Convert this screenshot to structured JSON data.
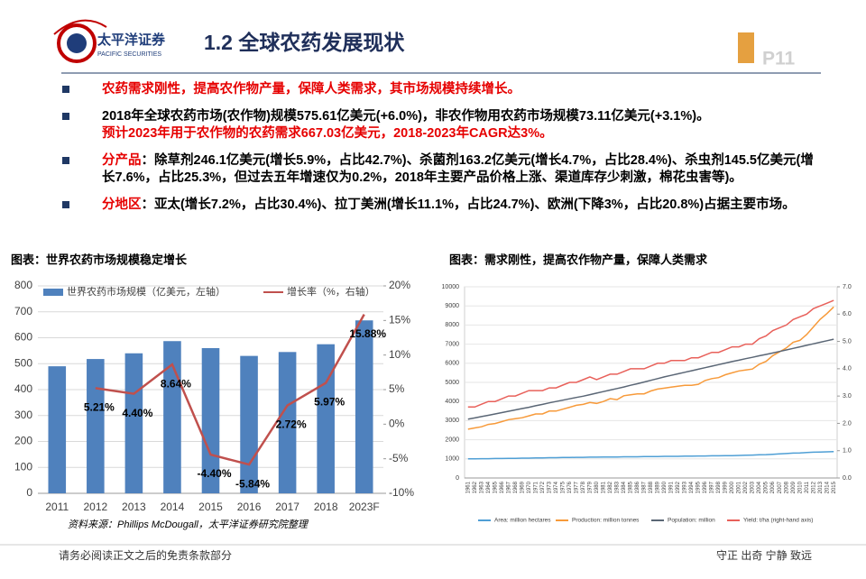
{
  "header": {
    "logo_cn": "太平洋证券",
    "logo_en": "PACIFIC SECURITIES",
    "title": "1.2 全球农药发展现状",
    "page": "P11"
  },
  "bullets": [
    [
      {
        "text": "农药需求刚性，提高农作物产量，保障人类需求，其市场规模持续增长。",
        "color": "#e60000"
      }
    ],
    [
      {
        "text": "2018年全球农药市场(农作物)规模575.61亿美元(+6.0%)，非农作物用农药市场规模73.11亿美元(+3.1%)。",
        "color": "#000000"
      },
      {
        "text": "预计2023年用于农作物的农药需求667.03亿美元，2018-2023年CAGR达3%。",
        "color": "#e60000"
      }
    ],
    [
      {
        "text": "分产品",
        "color": "#e60000"
      },
      {
        "text": "：除草剂246.1亿美元(增长5.9%，占比42.7%)、杀菌剂163.2亿美元(增长4.7%，占比28.4%)、杀虫剂145.5亿美元(增长7.6%，占比25.3%，但过去五年增速仅为0.2%，2018年主要产品价格上涨、渠道库存少刺激，棉花虫害等)。",
        "color": "#000000"
      }
    ],
    [
      {
        "text": "分地区",
        "color": "#e60000"
      },
      {
        "text": "：亚太(增长7.2%，占比30.4%)、拉丁美洲(增长11.1%，占比24.7%)、欧洲(下降3%，占比20.8%)占据主要市场。",
        "color": "#000000"
      }
    ]
  ],
  "chart_data": [
    {
      "type": "combo",
      "title": "图表：世界农药市场规模稳定增长",
      "categories": [
        "2011",
        "2012",
        "2013",
        "2014",
        "2015",
        "2016",
        "2017",
        "2018",
        "2023F"
      ],
      "series": [
        {
          "name": "世界农药市场规模（亿美元，左轴）",
          "type": "bar",
          "color": "#4f81bd",
          "values": [
            490,
            518,
            540,
            587,
            560,
            530,
            545,
            575,
            667
          ]
        },
        {
          "name": "增长率（%，右轴）",
          "type": "line",
          "axis": "y2",
          "color": "#c0504d",
          "values": [
            null,
            5.21,
            4.4,
            8.64,
            -4.4,
            -5.84,
            2.72,
            5.97,
            15.88
          ],
          "value_labels": [
            null,
            "5.21%",
            "4.40%",
            "8.64%",
            "-4.40%",
            "-5.84%",
            "2.72%",
            "5.97%",
            "15.88%"
          ]
        }
      ],
      "ylim": [
        0,
        800
      ],
      "yticks": [
        0,
        100,
        200,
        300,
        400,
        500,
        600,
        700,
        800
      ],
      "y2lim": [
        -10,
        20
      ],
      "y2ticks": [
        {
          "value": -10,
          "label": "-10%"
        },
        {
          "value": -5,
          "label": "-5%"
        },
        {
          "value": 0,
          "label": "0%"
        },
        {
          "value": 5,
          "label": "5%"
        },
        {
          "value": 10,
          "label": "10%"
        },
        {
          "value": 15,
          "label": "15%"
        },
        {
          "value": 20,
          "label": "20%"
        }
      ],
      "grid": true,
      "legend": "top",
      "source": "资料来源：Phillips McDougall，太平洋证券研究院整理"
    },
    {
      "type": "line",
      "title": "图表：需求刚性，提高农作物产量，保障人类需求",
      "categories": [
        "1961",
        "1962",
        "1963",
        "1964",
        "1965",
        "1966",
        "1967",
        "1968",
        "1969",
        "1970",
        "1971",
        "1972",
        "1973",
        "1974",
        "1975",
        "1976",
        "1977",
        "1978",
        "1979",
        "1980",
        "1981",
        "1982",
        "1983",
        "1984",
        "1985",
        "1986",
        "1987",
        "1988",
        "1989",
        "1990",
        "1991",
        "1992",
        "1993",
        "1994",
        "1995",
        "1996",
        "1997",
        "1998",
        "1999",
        "2000",
        "2001",
        "2002",
        "2003",
        "2004",
        "2005",
        "2006",
        "2007",
        "2008",
        "2009",
        "2010",
        "2011",
        "2012",
        "2013",
        "2014",
        "2015"
      ],
      "series": [
        {
          "name": "Area: million hectares",
          "color": "#4f9fd5",
          "values": [
            1000,
            1000,
            1010,
            1010,
            1020,
            1020,
            1030,
            1030,
            1040,
            1040,
            1050,
            1050,
            1060,
            1060,
            1070,
            1070,
            1080,
            1080,
            1090,
            1090,
            1100,
            1100,
            1100,
            1110,
            1110,
            1110,
            1120,
            1120,
            1120,
            1130,
            1130,
            1130,
            1140,
            1140,
            1150,
            1150,
            1160,
            1160,
            1170,
            1170,
            1180,
            1190,
            1200,
            1210,
            1220,
            1240,
            1260,
            1280,
            1300,
            1310,
            1330,
            1350,
            1360,
            1370,
            1380
          ]
        },
        {
          "name": "Production: million tonnes",
          "color": "#f79a3a",
          "values": [
            2550,
            2620,
            2680,
            2800,
            2850,
            2950,
            3050,
            3100,
            3150,
            3250,
            3350,
            3350,
            3500,
            3500,
            3600,
            3700,
            3800,
            3850,
            3950,
            3900,
            4000,
            4150,
            4100,
            4300,
            4350,
            4400,
            4400,
            4550,
            4650,
            4700,
            4750,
            4800,
            4850,
            4850,
            4900,
            5100,
            5200,
            5250,
            5400,
            5500,
            5600,
            5650,
            5700,
            5950,
            6100,
            6400,
            6600,
            6800,
            7100,
            7200,
            7500,
            7900,
            8300,
            8600,
            8950
          ]
        },
        {
          "name": "Population: million",
          "color": "#5a6675",
          "values": [
            3080,
            3140,
            3210,
            3280,
            3350,
            3420,
            3490,
            3560,
            3630,
            3700,
            3780,
            3850,
            3930,
            4000,
            4070,
            4140,
            4210,
            4280,
            4360,
            4440,
            4520,
            4600,
            4680,
            4760,
            4850,
            4930,
            5020,
            5110,
            5200,
            5290,
            5370,
            5450,
            5530,
            5610,
            5690,
            5770,
            5850,
            5930,
            6010,
            6090,
            6160,
            6240,
            6310,
            6390,
            6460,
            6540,
            6620,
            6700,
            6780,
            6860,
            6940,
            7020,
            7100,
            7180,
            7260
          ]
        },
        {
          "name": "Yield: t/ha (right-hand axis)",
          "axis": "y2",
          "color": "#e8605a",
          "values": [
            2.6,
            2.6,
            2.7,
            2.8,
            2.8,
            2.9,
            3.0,
            3.0,
            3.1,
            3.2,
            3.2,
            3.2,
            3.3,
            3.3,
            3.4,
            3.5,
            3.5,
            3.6,
            3.7,
            3.6,
            3.7,
            3.8,
            3.8,
            3.9,
            4.0,
            4.0,
            4.0,
            4.1,
            4.2,
            4.2,
            4.3,
            4.3,
            4.3,
            4.4,
            4.4,
            4.5,
            4.6,
            4.6,
            4.7,
            4.8,
            4.8,
            4.9,
            4.9,
            5.1,
            5.2,
            5.4,
            5.5,
            5.6,
            5.8,
            5.9,
            6.0,
            6.2,
            6.3,
            6.4,
            6.5
          ]
        }
      ],
      "ylim": [
        0,
        10000
      ],
      "yticks": [
        0,
        1000,
        2000,
        3000,
        4000,
        5000,
        6000,
        7000,
        8000,
        9000,
        10000
      ],
      "y2lim": [
        0,
        7
      ],
      "y2ticks": [
        {
          "value": 0,
          "label": "0.0"
        },
        {
          "value": 1,
          "label": "1.0"
        },
        {
          "value": 2,
          "label": "2.0"
        },
        {
          "value": 3,
          "label": "3.0"
        },
        {
          "value": 4,
          "label": "4.0"
        },
        {
          "value": 5,
          "label": "5.0"
        },
        {
          "value": 6,
          "label": "6.0"
        },
        {
          "value": 7,
          "label": "7.0"
        }
      ],
      "grid": true,
      "legend": "bottom"
    }
  ],
  "footer": {
    "left": "请务必阅读正文之后的免责条款部分",
    "right": "守正 出奇 宁静 致远"
  }
}
